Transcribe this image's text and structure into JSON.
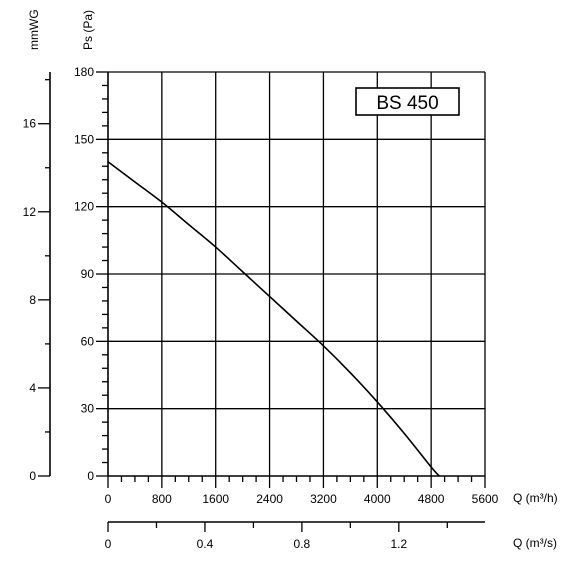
{
  "chart_data": {
    "type": "line",
    "model_label": "BS 450",
    "grid": true,
    "left_axis": {
      "title": "Ps (Pa)",
      "range": [
        0,
        180
      ],
      "ticks": [
        0,
        30,
        60,
        90,
        120,
        150,
        180
      ],
      "minor_step": 6
    },
    "far_left_axis": {
      "title": "mmWG",
      "range": [
        0,
        18.3486
      ],
      "ticks": [
        0,
        4,
        8,
        12,
        16
      ],
      "minor_step": 2
    },
    "bottom_axis": {
      "title": "Q (m³/h)",
      "range": [
        0,
        5600
      ],
      "ticks": [
        0,
        800,
        1600,
        2400,
        3200,
        4000,
        4800,
        5600
      ],
      "minor_step": 200
    },
    "second_bottom_axis": {
      "title": "Q (m³/s)",
      "range": [
        0,
        1.5556
      ],
      "ticks": [
        0,
        0.4,
        0.8,
        1.2
      ],
      "tick_labels": [
        "0",
        "0.4",
        "0.8",
        "1.2"
      ],
      "minor_step": 0.2
    },
    "series": [
      {
        "x": [
          0,
          400,
          800,
          1200,
          1600,
          2000,
          2400,
          2800,
          3200,
          3600,
          4000,
          4400,
          4800,
          4920
        ],
        "y": [
          140,
          131,
          122,
          112,
          102,
          91,
          80,
          69,
          58,
          46,
          33,
          19,
          4,
          0
        ]
      }
    ]
  }
}
